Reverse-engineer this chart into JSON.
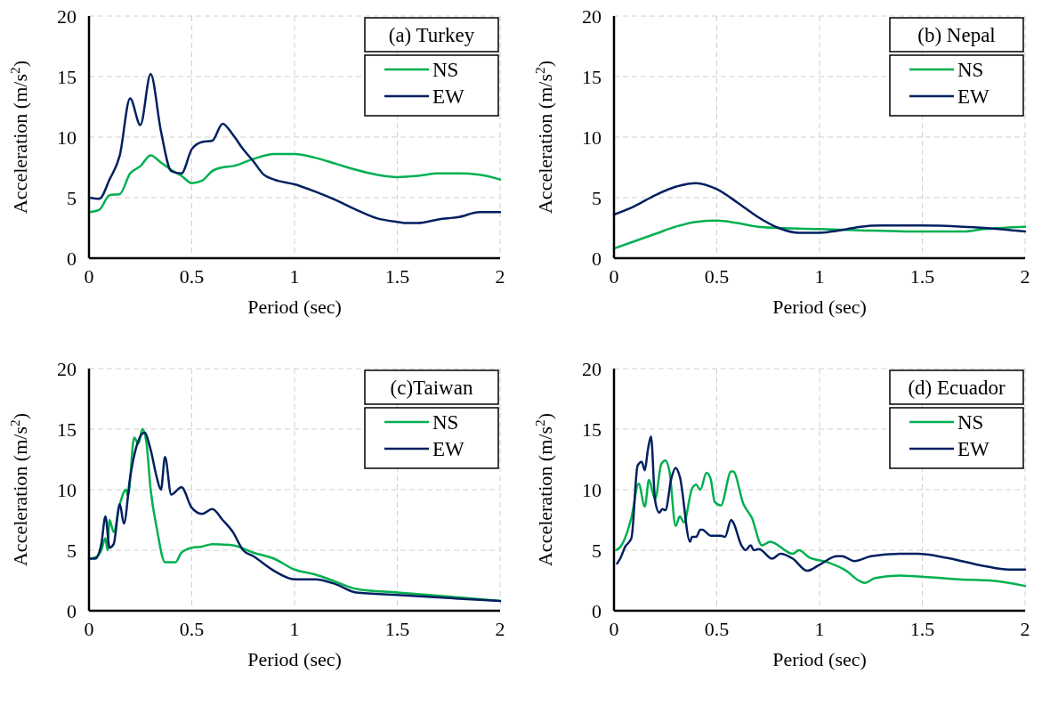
{
  "chart_data": [
    {
      "type": "line",
      "title": "(a) Turkey",
      "xlabel": "Period (sec)",
      "ylabel": "Acceleration (m/s$^{2}$)",
      "xlim": [
        0,
        2
      ],
      "xticks": [
        0,
        0.5,
        1,
        1.5,
        2
      ],
      "ylim": [
        0,
        20
      ],
      "yticks": [
        0,
        5,
        10,
        15,
        20
      ],
      "grid": true,
      "legend": "top right",
      "series": [
        {
          "name": "NS",
          "color": "#00b050",
          "x": [
            0,
            0.05,
            0.1,
            0.15,
            0.2,
            0.25,
            0.3,
            0.35,
            0.4,
            0.45,
            0.5,
            0.55,
            0.6,
            0.65,
            0.7,
            0.8,
            0.9,
            1.0,
            1.1,
            1.2,
            1.3,
            1.4,
            1.5,
            1.6,
            1.7,
            1.8,
            1.9,
            2.0
          ],
          "values": [
            3.8,
            4.0,
            5.2,
            5.3,
            7.0,
            7.6,
            8.5,
            7.9,
            7.3,
            6.8,
            6.2,
            6.4,
            7.2,
            7.5,
            7.6,
            8.2,
            8.6,
            8.6,
            8.3,
            7.8,
            7.3,
            6.9,
            6.7,
            6.8,
            7.0,
            7.0,
            6.9,
            6.5
          ]
        },
        {
          "name": "EW",
          "color": "#002060",
          "x": [
            0,
            0.05,
            0.1,
            0.15,
            0.2,
            0.25,
            0.3,
            0.35,
            0.4,
            0.45,
            0.5,
            0.55,
            0.6,
            0.65,
            0.7,
            0.75,
            0.8,
            0.85,
            0.9,
            1.0,
            1.1,
            1.2,
            1.3,
            1.4,
            1.5,
            1.55,
            1.6,
            1.7,
            1.8,
            1.9,
            2.0
          ],
          "values": [
            5.0,
            4.9,
            6.5,
            8.5,
            13.2,
            11.0,
            15.2,
            10.5,
            7.2,
            7.0,
            9.0,
            9.6,
            9.7,
            11.1,
            10.2,
            9.0,
            8.0,
            6.9,
            6.5,
            6.1,
            5.5,
            4.8,
            4.0,
            3.3,
            3.0,
            2.9,
            2.9,
            3.2,
            3.4,
            3.8,
            3.8
          ]
        }
      ]
    },
    {
      "type": "line",
      "title": "(b) Nepal",
      "xlabel": "Period (sec)",
      "ylabel": "Acceleration (m/s$^{2}$)",
      "xlim": [
        0,
        2
      ],
      "xticks": [
        0,
        0.5,
        1,
        1.5,
        2
      ],
      "ylim": [
        0,
        20
      ],
      "yticks": [
        0,
        5,
        10,
        15,
        20
      ],
      "grid": true,
      "legend": "top right",
      "series": [
        {
          "name": "NS",
          "color": "#00b050",
          "x": [
            0,
            0.1,
            0.2,
            0.3,
            0.4,
            0.5,
            0.6,
            0.7,
            0.8,
            1.0,
            1.2,
            1.5,
            1.7,
            1.8,
            2.0
          ],
          "values": [
            0.8,
            1.4,
            2.0,
            2.6,
            3.0,
            3.1,
            2.9,
            2.6,
            2.5,
            2.4,
            2.3,
            2.2,
            2.2,
            2.4,
            2.6
          ]
        },
        {
          "name": "EW",
          "color": "#002060",
          "x": [
            0,
            0.1,
            0.2,
            0.3,
            0.4,
            0.5,
            0.6,
            0.7,
            0.8,
            0.9,
            1.0,
            1.1,
            1.2,
            1.3,
            1.5,
            1.7,
            1.8,
            2.0
          ],
          "values": [
            3.6,
            4.3,
            5.2,
            5.9,
            6.2,
            5.7,
            4.6,
            3.4,
            2.5,
            2.1,
            2.1,
            2.3,
            2.6,
            2.7,
            2.7,
            2.6,
            2.5,
            2.2
          ]
        }
      ]
    },
    {
      "type": "line",
      "title": "(c)Taiwan",
      "xlabel": "Period (sec)",
      "ylabel": "Acceleration (m/s$^{2}$)",
      "xlim": [
        0,
        2
      ],
      "xticks": [
        0,
        0.5,
        1,
        1.5,
        2
      ],
      "ylim": [
        0,
        20
      ],
      "yticks": [
        0,
        5,
        10,
        15,
        20
      ],
      "grid": true,
      "legend": "top right",
      "series": [
        {
          "name": "NS",
          "color": "#00b050",
          "x": [
            0,
            0.03,
            0.06,
            0.08,
            0.09,
            0.1,
            0.12,
            0.15,
            0.18,
            0.19,
            0.22,
            0.24,
            0.26,
            0.28,
            0.3,
            0.33,
            0.37,
            0.42,
            0.45,
            0.5,
            0.55,
            0.6,
            0.7,
            0.8,
            0.9,
            1.0,
            1.1,
            1.2,
            1.3,
            1.5,
            1.8,
            2.0
          ],
          "values": [
            4.3,
            4.4,
            5.0,
            6.0,
            5.0,
            7.5,
            6.5,
            8.8,
            10.0,
            9.5,
            14.3,
            13.8,
            15.0,
            13.8,
            10.0,
            6.8,
            4.0,
            4.0,
            4.8,
            5.2,
            5.3,
            5.5,
            5.4,
            4.8,
            4.3,
            3.4,
            3.0,
            2.4,
            1.8,
            1.5,
            1.1,
            0.8
          ]
        },
        {
          "name": "EW",
          "color": "#002060",
          "x": [
            0,
            0.03,
            0.06,
            0.08,
            0.1,
            0.12,
            0.15,
            0.17,
            0.2,
            0.23,
            0.27,
            0.3,
            0.33,
            0.35,
            0.37,
            0.4,
            0.45,
            0.5,
            0.55,
            0.6,
            0.65,
            0.7,
            0.75,
            0.8,
            0.9,
            1.0,
            1.05,
            1.1,
            1.2,
            1.3,
            1.5,
            1.8,
            2.0
          ],
          "values": [
            4.3,
            4.3,
            5.5,
            7.8,
            5.2,
            5.5,
            8.8,
            7.2,
            11.0,
            13.5,
            14.7,
            13.3,
            11.0,
            10.0,
            12.7,
            9.6,
            10.2,
            8.5,
            8.0,
            8.4,
            7.5,
            6.5,
            5.0,
            4.5,
            3.3,
            2.6,
            2.6,
            2.6,
            2.2,
            1.5,
            1.3,
            1.0,
            0.8
          ]
        }
      ]
    },
    {
      "type": "line",
      "title": "(d) Ecuador",
      "xlabel": "Period (sec)",
      "ylabel": "Acceleration (m/s$^{2}$)",
      "xlim": [
        0,
        2
      ],
      "xticks": [
        0,
        0.5,
        1,
        1.5,
        2
      ],
      "ylim": [
        0,
        20
      ],
      "yticks": [
        0,
        5,
        10,
        15,
        20
      ],
      "grid": true,
      "legend": "top right",
      "series": [
        {
          "name": "NS",
          "color": "#00b050",
          "x": [
            0.01,
            0.03,
            0.085,
            0.12,
            0.15,
            0.17,
            0.2,
            0.23,
            0.25,
            0.27,
            0.3,
            0.32,
            0.34,
            0.38,
            0.4,
            0.42,
            0.45,
            0.47,
            0.49,
            0.52,
            0.57,
            0.58,
            0.63,
            0.67,
            0.72,
            0.76,
            0.87,
            0.9,
            0.95,
            1.04,
            1.13,
            1.19,
            1.22,
            1.27,
            1.39,
            1.51,
            1.68,
            1.83,
            2.0
          ],
          "values": [
            5.0,
            5.25,
            7.7,
            10.5,
            8.6,
            10.8,
            9.2,
            12.1,
            12.4,
            11.5,
            7.0,
            7.8,
            7.3,
            10.1,
            10.4,
            10.0,
            11.4,
            10.9,
            9.0,
            8.7,
            11.5,
            11.5,
            8.8,
            7.7,
            5.4,
            5.7,
            4.7,
            5.0,
            4.4,
            4.0,
            3.3,
            2.5,
            2.3,
            2.7,
            2.9,
            2.8,
            2.6,
            2.5,
            2.05
          ]
        },
        {
          "name": "EW",
          "color": "#002060",
          "x": [
            0.015,
            0.03,
            0.055,
            0.085,
            0.115,
            0.135,
            0.15,
            0.165,
            0.18,
            0.2,
            0.22,
            0.235,
            0.25,
            0.28,
            0.3,
            0.32,
            0.37,
            0.38,
            0.4,
            0.42,
            0.43,
            0.47,
            0.52,
            0.54,
            0.57,
            0.58,
            0.62,
            0.64,
            0.665,
            0.68,
            0.705,
            0.77,
            0.81,
            0.87,
            0.94,
            1.0,
            1.085,
            1.11,
            1.17,
            1.25,
            1.39,
            1.48,
            1.61,
            1.8,
            1.92,
            2.0
          ],
          "values": [
            3.9,
            4.3,
            5.3,
            6.0,
            12.0,
            12.3,
            11.6,
            13.3,
            14.4,
            9.1,
            8.1,
            8.4,
            8.3,
            11.0,
            11.8,
            11.1,
            5.7,
            6.1,
            6.1,
            6.7,
            6.7,
            6.2,
            6.2,
            6.1,
            7.5,
            7.3,
            5.4,
            5.0,
            5.4,
            5.0,
            5.1,
            4.3,
            4.7,
            4.3,
            3.3,
            3.8,
            4.5,
            4.5,
            4.1,
            4.5,
            4.7,
            4.7,
            4.4,
            3.7,
            3.4,
            3.4
          ]
        }
      ]
    }
  ]
}
